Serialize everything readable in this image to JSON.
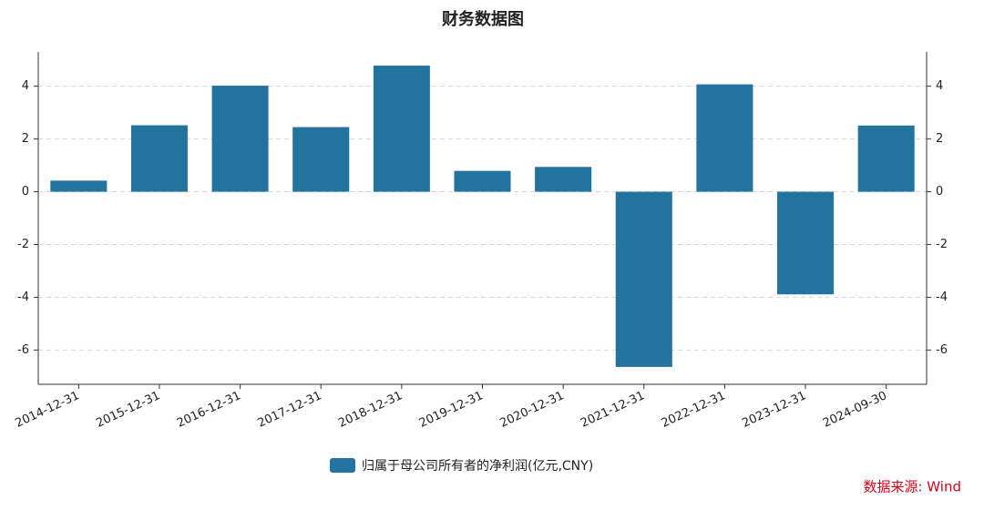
{
  "chart_data": {
    "type": "bar",
    "title": "财务数据图",
    "categories": [
      "2014-12-31",
      "2015-12-31",
      "2016-12-31",
      "2017-12-31",
      "2018-12-31",
      "2019-12-31",
      "2020-12-31",
      "2021-12-31",
      "2022-12-31",
      "2023-12-31",
      "2024-09-30"
    ],
    "series": [
      {
        "name": "归属于母公司所有者的净利润(亿元,CNY)",
        "color": "#22749f",
        "values": [
          0.42,
          2.52,
          4.02,
          2.45,
          4.78,
          0.79,
          0.94,
          -6.64,
          4.07,
          -3.89,
          2.51
        ]
      }
    ],
    "ylim": [
      -7.3,
      5.3
    ],
    "yticks": [
      -6,
      -4,
      -2,
      0,
      2,
      4
    ],
    "y2lim": [
      -7.3,
      5.3
    ],
    "y2ticks": [
      -6,
      -4,
      -2,
      0,
      2,
      4
    ],
    "grid": true,
    "legend": "bottom",
    "source": "数据来源: Wind"
  }
}
